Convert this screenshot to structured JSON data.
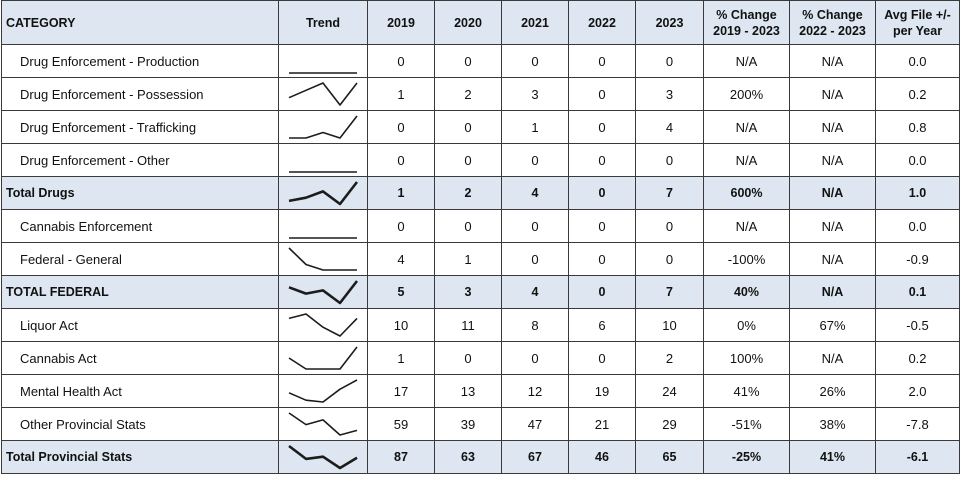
{
  "headers": {
    "category": "CATEGORY",
    "trend": "Trend",
    "y2019": "2019",
    "y2020": "2020",
    "y2021": "2021",
    "y2022": "2022",
    "y2023": "2023",
    "pct_1923_l1": "% Change",
    "pct_1923_l2": "2019 - 2023",
    "pct_2223_l1": "% Change",
    "pct_2223_l2": "2022 - 2023",
    "avg_l1": "Avg File +/-",
    "avg_l2": "per Year"
  },
  "rows": [
    {
      "category": "Drug Enforcement - Production",
      "total": false,
      "values": [
        "0",
        "0",
        "0",
        "0",
        "0"
      ],
      "pct_1923": "N/A",
      "pct_2223": "N/A",
      "avg": "0.0"
    },
    {
      "category": "Drug Enforcement - Possession",
      "total": false,
      "values": [
        "1",
        "2",
        "3",
        "0",
        "3"
      ],
      "pct_1923": "200%",
      "pct_2223": "N/A",
      "avg": "0.2"
    },
    {
      "category": "Drug Enforcement - Trafficking",
      "total": false,
      "values": [
        "0",
        "0",
        "1",
        "0",
        "4"
      ],
      "pct_1923": "N/A",
      "pct_2223": "N/A",
      "avg": "0.8"
    },
    {
      "category": "Drug Enforcement - Other",
      "total": false,
      "values": [
        "0",
        "0",
        "0",
        "0",
        "0"
      ],
      "pct_1923": "N/A",
      "pct_2223": "N/A",
      "avg": "0.0"
    },
    {
      "category": "Total Drugs",
      "total": true,
      "values": [
        "1",
        "2",
        "4",
        "0",
        "7"
      ],
      "pct_1923": "600%",
      "pct_2223": "N/A",
      "avg": "1.0"
    },
    {
      "category": "Cannabis Enforcement",
      "total": false,
      "values": [
        "0",
        "0",
        "0",
        "0",
        "0"
      ],
      "pct_1923": "N/A",
      "pct_2223": "N/A",
      "avg": "0.0"
    },
    {
      "category": "Federal - General",
      "total": false,
      "values": [
        "4",
        "1",
        "0",
        "0",
        "0"
      ],
      "pct_1923": "-100%",
      "pct_2223": "N/A",
      "avg": "-0.9"
    },
    {
      "category": "TOTAL FEDERAL",
      "total": true,
      "values": [
        "5",
        "3",
        "4",
        "0",
        "7"
      ],
      "pct_1923": "40%",
      "pct_2223": "N/A",
      "avg": "0.1"
    },
    {
      "category": "Liquor Act",
      "total": false,
      "values": [
        "10",
        "11",
        "8",
        "6",
        "10"
      ],
      "pct_1923": "0%",
      "pct_2223": "67%",
      "avg": "-0.5"
    },
    {
      "category": "Cannabis Act",
      "total": false,
      "values": [
        "1",
        "0",
        "0",
        "0",
        "2"
      ],
      "pct_1923": "100%",
      "pct_2223": "N/A",
      "avg": "0.2"
    },
    {
      "category": "Mental Health Act",
      "total": false,
      "values": [
        "17",
        "13",
        "12",
        "19",
        "24"
      ],
      "pct_1923": "41%",
      "pct_2223": "26%",
      "avg": "2.0"
    },
    {
      "category": "Other Provincial Stats",
      "total": false,
      "values": [
        "59",
        "39",
        "47",
        "21",
        "29"
      ],
      "pct_1923": "-51%",
      "pct_2223": "38%",
      "avg": "-7.8"
    },
    {
      "category": "Total Provincial Stats",
      "total": true,
      "values": [
        "87",
        "63",
        "67",
        "46",
        "65"
      ],
      "pct_1923": "-25%",
      "pct_2223": "41%",
      "avg": "-6.1"
    }
  ]
}
